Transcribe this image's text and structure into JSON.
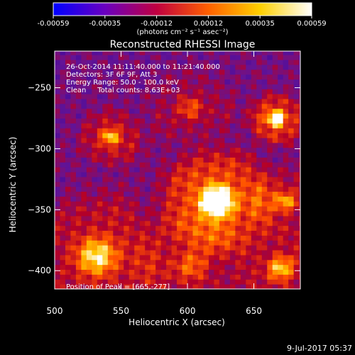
{
  "chart_data": {
    "type": "heatmap",
    "title": "Reconstructed RHESSI Image",
    "xlabel": "Heliocentric X (arcsec)",
    "ylabel": "Heliocentric Y (arcsec)",
    "xlim": [
      500,
      685
    ],
    "ylim": [
      -415,
      -220
    ],
    "xticks": [
      500,
      550,
      600,
      650
    ],
    "yticks": [
      -250,
      -300,
      -350,
      -400
    ],
    "colorbar": {
      "range": [
        -0.00059,
        0.00059
      ],
      "ticks": [
        "-0.00059",
        "-0.00035",
        "-0.00012",
        "0.00012",
        "0.00035",
        "0.00059"
      ],
      "label": "(photons cm⁻² s⁻¹ asec⁻²)",
      "colors": [
        "#0000ff",
        "#6a00c0",
        "#c00040",
        "#ff6000",
        "#ffd000",
        "#ffffff"
      ]
    },
    "annotations": [
      "26-Oct-2014 11:11:40.000 to 11:21:40.000",
      "Detectors: 3F 6F 9F, Att 3",
      "Energy Range: 50.0 - 100.0 keV",
      "Clean     Total counts: 8.63E+03"
    ],
    "peak_label": "Position of Peak = [665,-277]",
    "peak": {
      "x": 665,
      "y": -277
    },
    "sources": [
      {
        "x": 620,
        "y": -345,
        "amp": 1.0,
        "sigma": 18
      },
      {
        "x": 665,
        "y": -277,
        "amp": 0.85,
        "sigma": 9
      },
      {
        "x": 540,
        "y": -292,
        "amp": 0.55,
        "sigma": 10
      },
      {
        "x": 530,
        "y": -390,
        "amp": 0.6,
        "sigma": 22
      },
      {
        "x": 600,
        "y": -398,
        "amp": 0.35,
        "sigma": 18
      },
      {
        "x": 668,
        "y": -400,
        "amp": 0.5,
        "sigma": 14
      },
      {
        "x": 672,
        "y": -345,
        "amp": 0.45,
        "sigma": 12
      },
      {
        "x": 600,
        "y": -268,
        "amp": 0.3,
        "sigma": 14
      }
    ]
  },
  "timestamp": "9-Jul-2017 05:37"
}
